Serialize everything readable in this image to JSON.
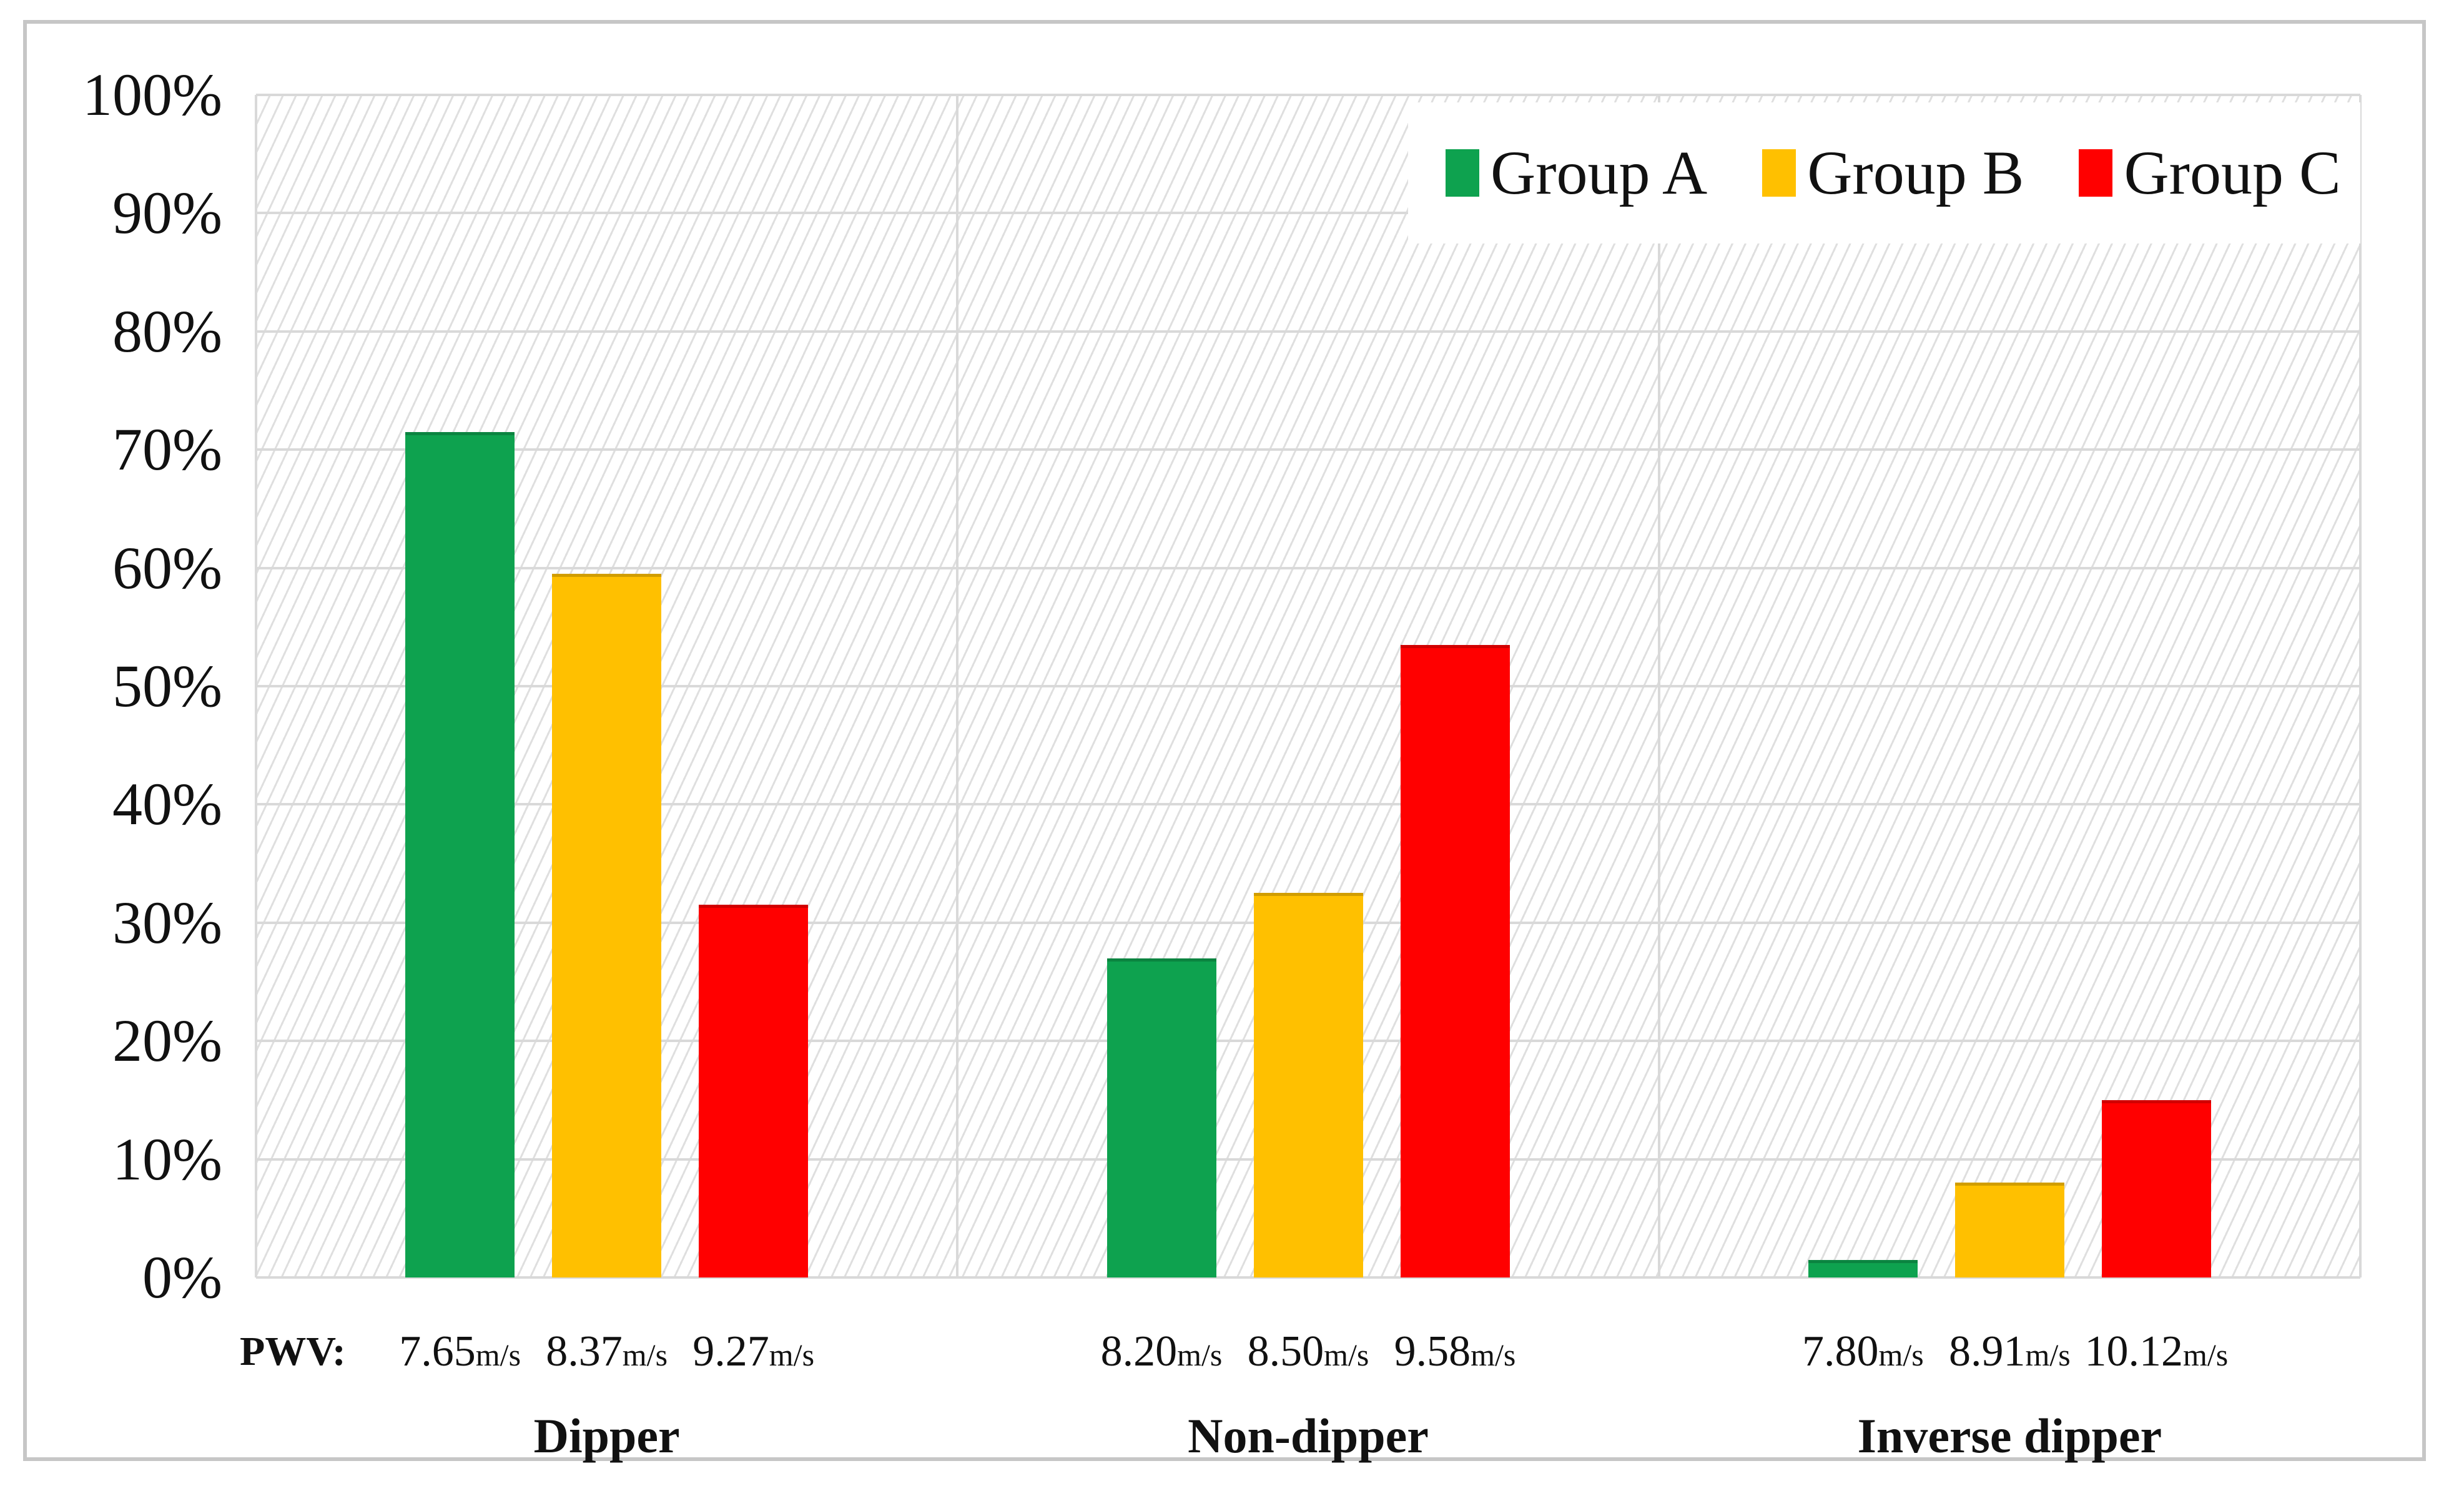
{
  "colors": {
    "gridline": "#D9D9D9",
    "hatch_line": "#DFDFDF",
    "figure_border": "#C6C6C6",
    "text": "#111111",
    "background": "#FFFFFF"
  },
  "chart_data": {
    "type": "bar",
    "title": "",
    "categories": [
      "Dipper",
      "Non-dipper",
      "Inverse dipper"
    ],
    "series": [
      {
        "name": "Group A",
        "color": "#0EA24F",
        "values_pct": [
          71.5,
          27.0,
          1.5
        ]
      },
      {
        "name": "Group B",
        "color": "#FFC000",
        "values_pct": [
          59.5,
          32.5,
          8.0
        ]
      },
      {
        "name": "Group C",
        "color": "#FF0000",
        "values_pct": [
          31.5,
          53.5,
          15.0
        ]
      }
    ],
    "pwv_row_label": "PWV:",
    "pwv_unit": "m/s",
    "pwv_values": [
      [
        "7.65",
        "8.37",
        "9.27"
      ],
      [
        "8.20",
        "8.50",
        "9.58"
      ],
      [
        "7.80",
        "8.91",
        "10.12"
      ]
    ],
    "y_axis": {
      "tick_labels": [
        "0%",
        "10%",
        "20%",
        "30%",
        "40%",
        "50%",
        "60%",
        "70%",
        "80%",
        "90%",
        "100%"
      ],
      "min": 0,
      "max": 100,
      "grid": true
    },
    "legend": {
      "position": "top-right",
      "entries": [
        "Group A",
        "Group B",
        "Group C"
      ]
    }
  }
}
